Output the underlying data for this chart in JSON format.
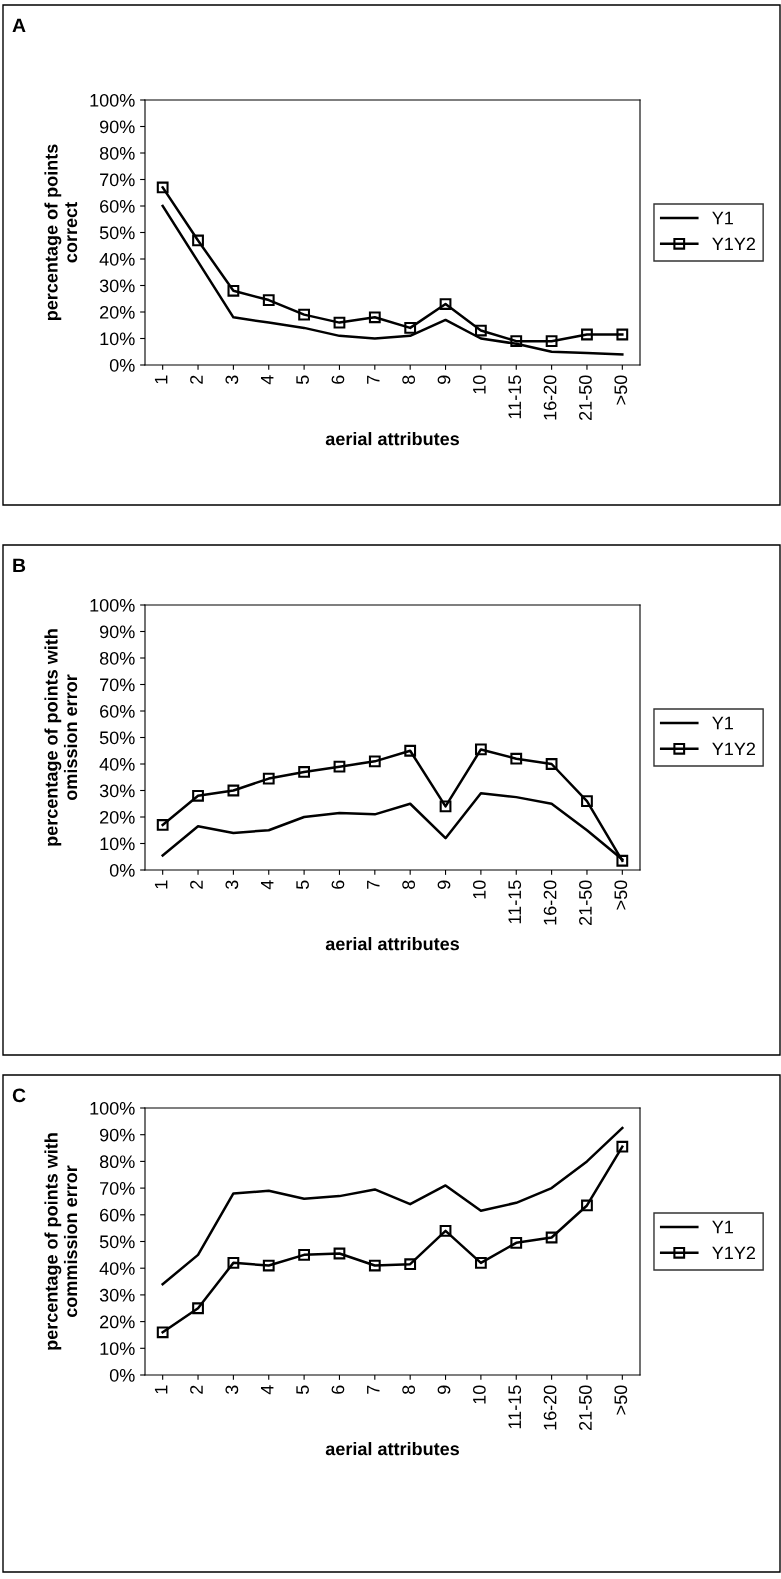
{
  "chart_data": [
    {
      "type": "line",
      "title": "A",
      "xlabel": "aerial attributes",
      "ylabel": "percentage of points\ncorrect",
      "categories": [
        "1",
        "2",
        "3",
        "4",
        "5",
        "6",
        "7",
        "8",
        "9",
        "10",
        "11-15",
        "16-20",
        "21-50",
        ">50"
      ],
      "series": [
        {
          "name": "Y1",
          "color": "#000000",
          "marker": "none",
          "values": [
            60,
            39,
            18,
            16,
            14,
            11,
            10,
            11,
            17,
            10,
            8,
            5,
            4.5,
            4
          ]
        },
        {
          "name": "Y1Y2",
          "color": "#000000",
          "marker": "square",
          "values": [
            67,
            47,
            28,
            24.5,
            19,
            16,
            18,
            14,
            23,
            13,
            9,
            9,
            11.5,
            11.5
          ]
        }
      ],
      "ylim": [
        0,
        100
      ],
      "yticks": [
        {
          "value": 0,
          "label": "0%"
        },
        {
          "value": 10,
          "label": "10%"
        },
        {
          "value": 20,
          "label": "20%"
        },
        {
          "value": 30,
          "label": "30%"
        },
        {
          "value": 40,
          "label": "40%"
        },
        {
          "value": 50,
          "label": "50%"
        },
        {
          "value": 60,
          "label": "60%"
        },
        {
          "value": 70,
          "label": "70%"
        },
        {
          "value": 80,
          "label": "80%"
        },
        {
          "value": 90,
          "label": "90%"
        },
        {
          "value": 100,
          "label": "100%"
        }
      ],
      "grid": false,
      "legend": "right",
      "line_style": "solid"
    },
    {
      "type": "line",
      "title": "B",
      "xlabel": "aerial attributes",
      "ylabel": "percentage of points with\nomission error",
      "categories": [
        "1",
        "2",
        "3",
        "4",
        "5",
        "6",
        "7",
        "8",
        "9",
        "10",
        "11-15",
        "16-20",
        "21-50",
        ">50"
      ],
      "series": [
        {
          "name": "Y1",
          "color": "#000000",
          "marker": "none",
          "values": [
            5.5,
            16.5,
            14,
            15,
            20,
            21.5,
            21,
            25,
            12,
            29,
            27.5,
            25,
            15,
            4
          ]
        },
        {
          "name": "Y1Y2",
          "color": "#000000",
          "marker": "square",
          "values": [
            17,
            28,
            30,
            34.5,
            37,
            39,
            41,
            45,
            24,
            45.5,
            42,
            40,
            26,
            3.5
          ]
        }
      ],
      "ylim": [
        0,
        100
      ],
      "yticks": [
        {
          "value": 0,
          "label": "0%"
        },
        {
          "value": 10,
          "label": "10%"
        },
        {
          "value": 20,
          "label": "20%"
        },
        {
          "value": 30,
          "label": "30%"
        },
        {
          "value": 40,
          "label": "40%"
        },
        {
          "value": 50,
          "label": "50%"
        },
        {
          "value": 60,
          "label": "60%"
        },
        {
          "value": 70,
          "label": "70%"
        },
        {
          "value": 80,
          "label": "80%"
        },
        {
          "value": 90,
          "label": "90%"
        },
        {
          "value": 100,
          "label": "100%"
        }
      ],
      "grid": false,
      "legend": "right",
      "line_style": "solid"
    },
    {
      "type": "line",
      "title": "C",
      "xlabel": "aerial attributes",
      "ylabel": "percentage of points with\ncommission error",
      "categories": [
        "1",
        "2",
        "3",
        "4",
        "5",
        "6",
        "7",
        "8",
        "9",
        "10",
        "11-15",
        "16-20",
        "21-50",
        ">50"
      ],
      "series": [
        {
          "name": "Y1",
          "color": "#000000",
          "marker": "none",
          "values": [
            34,
            45,
            68,
            69,
            66,
            67,
            69.5,
            64,
            71,
            61.5,
            64.5,
            70,
            80,
            92.5
          ]
        },
        {
          "name": "Y1Y2",
          "color": "#000000",
          "marker": "square",
          "values": [
            16,
            25,
            42,
            41,
            45,
            45.5,
            41,
            41.5,
            54,
            42,
            49.5,
            51.5,
            63.5,
            85.5
          ]
        }
      ],
      "ylim": [
        0,
        100
      ],
      "yticks": [
        {
          "value": 0,
          "label": "0%"
        },
        {
          "value": 10,
          "label": "10%"
        },
        {
          "value": 20,
          "label": "20%"
        },
        {
          "value": 30,
          "label": "30%"
        },
        {
          "value": 40,
          "label": "40%"
        },
        {
          "value": 50,
          "label": "50%"
        },
        {
          "value": 60,
          "label": "60%"
        },
        {
          "value": 70,
          "label": "70%"
        },
        {
          "value": 80,
          "label": "80%"
        },
        {
          "value": 90,
          "label": "90%"
        },
        {
          "value": 100,
          "label": "100%"
        }
      ],
      "grid": false,
      "legend": "right",
      "line_style": "solid"
    }
  ]
}
